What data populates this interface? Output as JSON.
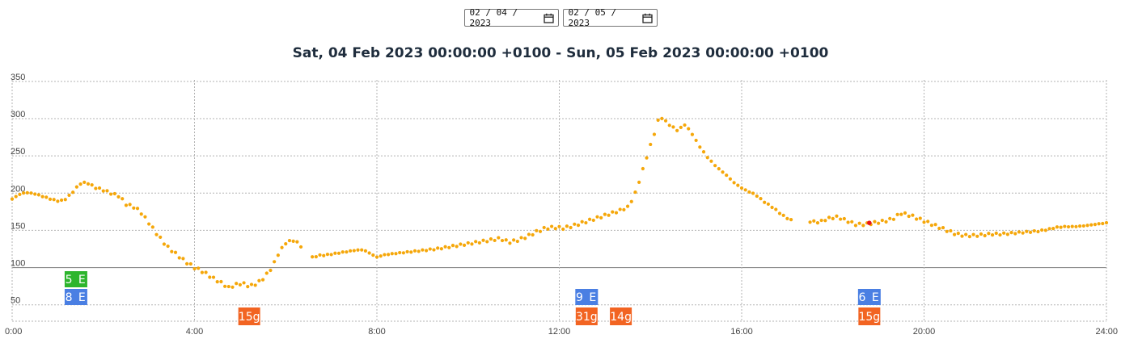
{
  "date_inputs": {
    "start": "02 / 04 / 2023",
    "end": "02 / 05 / 2023",
    "icon": "calendar-icon"
  },
  "colors": {
    "glucose": "#f5a70a",
    "selected_point": "#e8141c",
    "carbs": "#f26422",
    "insulin_blue": "#4a7fe3",
    "insulin_green": "#2db52d",
    "grid": "#b3b3b3",
    "target_line": "#8a8a8a"
  },
  "chart_data": {
    "type": "scatter",
    "title": "Sat, 04 Feb 2023 00:00:00 +0100 - Sun, 05 Feb 2023 00:00:00 +0100",
    "xlabel": "",
    "ylabel": "",
    "x_unit": "hours",
    "xlim": [
      0,
      24
    ],
    "ylim": [
      28,
      352
    ],
    "grid": true,
    "x_ticks": [
      {
        "value": 0,
        "label": "0:00"
      },
      {
        "value": 4,
        "label": "4:00"
      },
      {
        "value": 8,
        "label": "8:00"
      },
      {
        "value": 12,
        "label": "12:00"
      },
      {
        "value": 16,
        "label": "16:00"
      },
      {
        "value": 20,
        "label": "20:00"
      },
      {
        "value": 24,
        "label": "24:00"
      }
    ],
    "y_ticks": [
      {
        "value": 50,
        "label": "50"
      },
      {
        "value": 100,
        "label": "100"
      },
      {
        "value": 150,
        "label": "150"
      },
      {
        "value": 200,
        "label": "200"
      },
      {
        "value": 250,
        "label": "250"
      },
      {
        "value": 300,
        "label": "300"
      },
      {
        "value": 350,
        "label": "350"
      }
    ],
    "target_line": 100,
    "curve": [
      [
        0.0,
        192
      ],
      [
        0.15,
        198
      ],
      [
        0.3,
        201
      ],
      [
        0.5,
        199
      ],
      [
        0.7,
        195
      ],
      [
        0.9,
        191
      ],
      [
        1.05,
        189
      ],
      [
        1.2,
        193
      ],
      [
        1.35,
        203
      ],
      [
        1.5,
        213
      ],
      [
        1.65,
        214
      ],
      [
        1.8,
        208
      ],
      [
        2.0,
        204
      ],
      [
        2.2,
        199
      ],
      [
        2.35,
        196
      ],
      [
        2.5,
        185
      ],
      [
        2.65,
        182
      ],
      [
        2.8,
        176
      ],
      [
        3.0,
        160
      ],
      [
        3.2,
        143
      ],
      [
        3.4,
        128
      ],
      [
        3.6,
        118
      ],
      [
        3.8,
        108
      ],
      [
        4.0,
        100
      ],
      [
        4.2,
        94
      ],
      [
        4.4,
        86
      ],
      [
        4.6,
        79
      ],
      [
        4.75,
        73
      ],
      [
        4.9,
        77
      ],
      [
        5.05,
        79
      ],
      [
        5.2,
        75
      ],
      [
        5.35,
        78
      ],
      [
        5.5,
        85
      ],
      [
        5.7,
        100
      ],
      [
        5.85,
        120
      ],
      [
        6.0,
        133
      ],
      [
        6.15,
        137
      ],
      [
        6.3,
        132
      ],
      [
        6.5,
        112
      ],
      [
        6.7,
        116
      ],
      [
        6.9,
        117
      ],
      [
        7.1,
        119
      ],
      [
        7.3,
        121
      ],
      [
        7.5,
        123
      ],
      [
        7.7,
        124
      ],
      [
        7.85,
        119
      ],
      [
        8.0,
        114
      ],
      [
        8.15,
        117
      ],
      [
        8.4,
        119
      ],
      [
        8.7,
        121
      ],
      [
        9.0,
        123
      ],
      [
        9.3,
        125
      ],
      [
        9.6,
        128
      ],
      [
        9.9,
        131
      ],
      [
        10.2,
        134
      ],
      [
        10.5,
        137
      ],
      [
        10.7,
        139
      ],
      [
        10.9,
        134
      ],
      [
        11.1,
        137
      ],
      [
        11.3,
        142
      ],
      [
        11.5,
        148
      ],
      [
        11.7,
        153
      ],
      [
        11.9,
        154
      ],
      [
        12.1,
        153
      ],
      [
        12.3,
        156
      ],
      [
        12.5,
        160
      ],
      [
        12.7,
        164
      ],
      [
        12.9,
        168
      ],
      [
        13.1,
        172
      ],
      [
        13.3,
        176
      ],
      [
        13.5,
        181
      ],
      [
        13.65,
        197
      ],
      [
        13.8,
        225
      ],
      [
        13.95,
        255
      ],
      [
        14.1,
        283
      ],
      [
        14.2,
        304
      ],
      [
        14.3,
        298
      ],
      [
        14.45,
        290
      ],
      [
        14.6,
        284
      ],
      [
        14.75,
        292
      ],
      [
        14.9,
        281
      ],
      [
        15.05,
        265
      ],
      [
        15.25,
        248
      ],
      [
        15.45,
        235
      ],
      [
        15.65,
        225
      ],
      [
        15.85,
        213
      ],
      [
        16.05,
        205
      ],
      [
        16.3,
        198
      ],
      [
        16.5,
        188
      ],
      [
        16.7,
        180
      ],
      [
        16.9,
        170
      ],
      [
        17.1,
        163
      ],
      [
        17.3,
        160
      ],
      [
        17.5,
        162
      ],
      [
        17.7,
        161
      ],
      [
        17.9,
        166
      ],
      [
        18.1,
        168
      ],
      [
        18.3,
        163
      ],
      [
        18.5,
        158
      ],
      [
        18.7,
        158
      ],
      [
        18.9,
        160
      ],
      [
        19.1,
        162
      ],
      [
        19.3,
        165
      ],
      [
        19.5,
        173
      ],
      [
        19.7,
        170
      ],
      [
        19.9,
        165
      ],
      [
        20.1,
        160
      ],
      [
        20.3,
        155
      ],
      [
        20.5,
        150
      ],
      [
        20.7,
        145
      ],
      [
        20.9,
        143
      ],
      [
        21.1,
        143
      ],
      [
        21.3,
        144
      ],
      [
        21.5,
        145
      ],
      [
        21.7,
        145
      ],
      [
        21.9,
        146
      ],
      [
        22.1,
        147
      ],
      [
        22.3,
        148
      ],
      [
        22.5,
        149
      ],
      [
        22.7,
        151
      ],
      [
        22.9,
        154
      ],
      [
        23.1,
        155
      ],
      [
        23.3,
        155
      ],
      [
        23.5,
        156
      ],
      [
        23.75,
        158
      ],
      [
        24.0,
        160
      ]
    ],
    "gaps": [
      [
        6.35,
        6.55
      ],
      [
        17.15,
        17.45
      ],
      [
        8.0,
        8.0
      ]
    ],
    "selected_point": {
      "x": 18.8,
      "y": 160
    },
    "treatments": [
      {
        "x": 1.4,
        "label": "5 E",
        "kind": "insulin",
        "color": "green",
        "row": 1
      },
      {
        "x": 1.4,
        "label": "8 E",
        "kind": "insulin",
        "color": "blue",
        "row": 2
      },
      {
        "x": 5.2,
        "label": "15g",
        "kind": "carbs",
        "color": "orange",
        "row": 3
      },
      {
        "x": 12.6,
        "label": "9 E",
        "kind": "insulin",
        "color": "blue",
        "row": 2
      },
      {
        "x": 12.6,
        "label": "31g",
        "kind": "carbs",
        "color": "orange",
        "row": 3
      },
      {
        "x": 13.35,
        "label": "14g",
        "kind": "carbs",
        "color": "orange",
        "row": 3
      },
      {
        "x": 18.8,
        "label": "6 E",
        "kind": "insulin",
        "color": "blue",
        "row": 2
      },
      {
        "x": 18.8,
        "label": "15g",
        "kind": "carbs",
        "color": "orange",
        "row": 3
      }
    ]
  }
}
